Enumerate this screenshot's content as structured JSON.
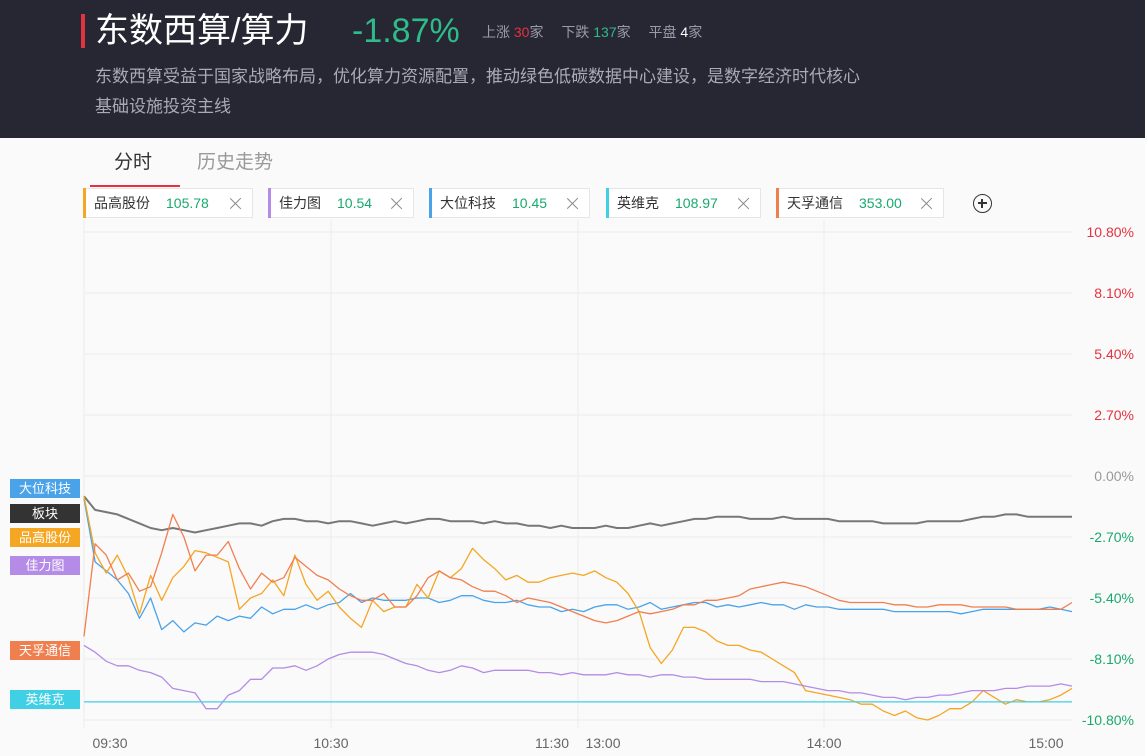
{
  "header": {
    "title": "东数西算/算力",
    "change_pct": "-1.87%",
    "up_label": "上涨",
    "up_count": "30",
    "down_label": "下跌",
    "down_count": "137",
    "flat_label": "平盘",
    "flat_count": "4",
    "unit": "家",
    "description": "东数西算受益于国家战略布局，优化算力资源配置，推动绿色低碳数据中心建设，是数字经济时代核心基础设施投资主线"
  },
  "tabs": [
    {
      "label": "分时",
      "active": true
    },
    {
      "label": "历史走势",
      "active": false
    }
  ],
  "chips": [
    {
      "name": "品高股份",
      "value": "105.78",
      "color": "#f5a623"
    },
    {
      "name": "佳力图",
      "value": "10.54",
      "color": "#b48be6"
    },
    {
      "name": "大位科技",
      "value": "10.45",
      "color": "#4aa3e8"
    },
    {
      "name": "英维克",
      "value": "108.97",
      "color": "#3fd0e6"
    },
    {
      "name": "天孚通信",
      "value": "353.00",
      "color": "#f07f4f"
    }
  ],
  "tags": [
    {
      "label": "大位科技",
      "color": "#4aa3e8"
    },
    {
      "label": "板块",
      "color": "#333333"
    },
    {
      "label": "品高股份",
      "color": "#f5a623"
    },
    {
      "label": "佳力图",
      "color": "#b48be6"
    },
    {
      "label": "天孚通信",
      "color": "#f07f4f"
    },
    {
      "label": "英维克",
      "color": "#3fd0e6"
    }
  ],
  "chart_data": {
    "type": "line",
    "x_ticks": [
      "09:30",
      "10:30",
      "11:30",
      "13:00",
      "14:00",
      "15:00"
    ],
    "y_ticks": [
      "10.80%",
      "8.10%",
      "5.40%",
      "2.70%",
      "0.00%",
      "-2.70%",
      "-5.40%",
      "-8.10%",
      "-10.80%"
    ],
    "ylim": [
      -10.8,
      10.8
    ],
    "grid": true,
    "series": [
      {
        "name": "板块",
        "color": "#777777",
        "values": [
          -0.9,
          -1.5,
          -1.6,
          -1.7,
          -1.9,
          -2.1,
          -2.3,
          -2.4,
          -2.3,
          -2.4,
          -2.5,
          -2.4,
          -2.3,
          -2.2,
          -2.1,
          -2.1,
          -2.2,
          -2.0,
          -1.9,
          -1.9,
          -2.0,
          -2.0,
          -2.1,
          -2.0,
          -2.0,
          -2.1,
          -2.2,
          -2.1,
          -2.0,
          -2.1,
          -2.0,
          -1.9,
          -1.9,
          -2.0,
          -2.0,
          -2.0,
          -2.1,
          -2.0,
          -2.1,
          -2.1,
          -2.2,
          -2.2,
          -2.3,
          -2.2,
          -2.3,
          -2.3,
          -2.3,
          -2.2,
          -2.3,
          -2.3,
          -2.2,
          -2.1,
          -2.2,
          -2.1,
          -2.0,
          -1.9,
          -1.9,
          -1.8,
          -1.8,
          -1.8,
          -1.9,
          -1.9,
          -1.9,
          -1.8,
          -1.9,
          -1.9,
          -1.9,
          -1.9,
          -2.0,
          -2.0,
          -2.0,
          -2.0,
          -2.1,
          -2.1,
          -2.1,
          -2.1,
          -2.0,
          -2.0,
          -2.0,
          -2.0,
          -1.9,
          -1.8,
          -1.8,
          -1.7,
          -1.7,
          -1.8,
          -1.8,
          -1.8,
          -1.8,
          -1.8
        ]
      },
      {
        "name": "大位科技",
        "color": "#4aa3e8",
        "values": [
          -1.0,
          -3.8,
          -4.2,
          -4.6,
          -5.2,
          -6.3,
          -5.4,
          -6.8,
          -6.4,
          -6.9,
          -6.5,
          -6.6,
          -6.2,
          -6.4,
          -6.2,
          -6.3,
          -5.8,
          -6.1,
          -5.9,
          -5.9,
          -5.7,
          -5.9,
          -5.7,
          -5.6,
          -5.2,
          -5.6,
          -5.4,
          -5.5,
          -5.5,
          -5.5,
          -5.4,
          -5.4,
          -5.6,
          -5.5,
          -5.3,
          -5.3,
          -5.5,
          -5.6,
          -5.6,
          -5.5,
          -5.7,
          -5.8,
          -5.8,
          -6.0,
          -5.9,
          -6.0,
          -5.8,
          -5.7,
          -5.7,
          -5.9,
          -5.8,
          -5.6,
          -5.9,
          -5.8,
          -5.7,
          -5.6,
          -5.6,
          -5.8,
          -5.7,
          -5.8,
          -5.7,
          -5.6,
          -5.7,
          -5.7,
          -5.9,
          -5.7,
          -5.8,
          -5.8,
          -5.9,
          -5.9,
          -5.9,
          -5.9,
          -5.9,
          -6.0,
          -6.0,
          -6.0,
          -6.0,
          -6.0,
          -6.0,
          -6.1,
          -6.0,
          -5.9,
          -5.9,
          -5.9,
          -5.9,
          -5.9,
          -5.9,
          -5.8,
          -5.9,
          -6.0
        ]
      },
      {
        "name": "品高股份",
        "color": "#f5a623",
        "values": [
          -0.9,
          -3.4,
          -4.3,
          -3.5,
          -4.5,
          -6.1,
          -4.4,
          -5.5,
          -4.5,
          -4.0,
          -3.3,
          -3.4,
          -3.6,
          -3.8,
          -5.9,
          -5.4,
          -5.2,
          -4.6,
          -5.3,
          -3.5,
          -4.8,
          -5.5,
          -5.1,
          -5.8,
          -6.3,
          -6.7,
          -5.5,
          -6.0,
          -5.8,
          -5.8,
          -4.8,
          -5.4,
          -4.2,
          -4.5,
          -4.1,
          -3.2,
          -3.7,
          -4.1,
          -4.6,
          -4.4,
          -4.7,
          -4.7,
          -4.5,
          -4.4,
          -4.3,
          -4.4,
          -4.2,
          -4.5,
          -4.7,
          -5.2,
          -6.0,
          -7.6,
          -8.3,
          -7.7,
          -6.7,
          -6.7,
          -6.9,
          -7.3,
          -7.5,
          -7.5,
          -7.7,
          -7.8,
          -8.1,
          -8.4,
          -8.7,
          -9.5,
          -9.6,
          -9.7,
          -9.8,
          -9.9,
          -10.1,
          -10.1,
          -10.4,
          -10.6,
          -10.4,
          -10.7,
          -10.8,
          -10.6,
          -10.3,
          -10.3,
          -10.0,
          -9.5,
          -9.8,
          -10.1,
          -9.9,
          -10.0,
          -10.0,
          -9.9,
          -9.7,
          -9.4
        ]
      },
      {
        "name": "天孚通信",
        "color": "#f07f4f",
        "values": [
          -7.1,
          -3.0,
          -3.5,
          -4.6,
          -4.3,
          -5.1,
          -4.9,
          -3.4,
          -1.7,
          -2.7,
          -4.2,
          -3.5,
          -3.5,
          -2.9,
          -4.1,
          -5.0,
          -4.3,
          -4.7,
          -4.5,
          -3.6,
          -4.0,
          -4.4,
          -4.6,
          -5.0,
          -5.3,
          -5.5,
          -5.5,
          -5.2,
          -5.8,
          -5.8,
          -5.3,
          -4.5,
          -4.2,
          -4.5,
          -4.6,
          -4.9,
          -5.1,
          -5.1,
          -5.3,
          -5.6,
          -5.4,
          -5.5,
          -5.6,
          -5.8,
          -6.0,
          -6.2,
          -6.4,
          -6.5,
          -6.4,
          -6.2,
          -6.0,
          -6.1,
          -6.0,
          -5.9,
          -5.7,
          -5.7,
          -5.5,
          -5.5,
          -5.4,
          -5.3,
          -5.0,
          -4.9,
          -4.8,
          -4.7,
          -4.8,
          -4.9,
          -5.1,
          -5.3,
          -5.5,
          -5.6,
          -5.6,
          -5.6,
          -5.6,
          -5.7,
          -5.7,
          -5.8,
          -5.8,
          -5.7,
          -5.7,
          -5.7,
          -5.8,
          -5.8,
          -5.8,
          -5.8,
          -5.9,
          -5.9,
          -5.9,
          -5.9,
          -5.9,
          -5.6
        ]
      },
      {
        "name": "佳力图",
        "color": "#b48be6",
        "values": [
          -7.5,
          -7.8,
          -8.2,
          -8.4,
          -8.4,
          -8.6,
          -8.7,
          -8.9,
          -9.4,
          -9.5,
          -9.6,
          -10.3,
          -10.3,
          -9.7,
          -9.5,
          -9.0,
          -9.0,
          -8.5,
          -8.5,
          -8.4,
          -8.6,
          -8.4,
          -8.1,
          -7.9,
          -7.8,
          -7.8,
          -7.8,
          -7.9,
          -8.1,
          -8.3,
          -8.4,
          -8.6,
          -8.7,
          -8.6,
          -8.4,
          -8.5,
          -8.7,
          -8.6,
          -8.6,
          -8.6,
          -8.6,
          -8.7,
          -8.7,
          -8.8,
          -8.7,
          -8.8,
          -8.8,
          -8.8,
          -8.7,
          -8.8,
          -8.8,
          -8.9,
          -8.8,
          -8.8,
          -8.9,
          -8.9,
          -9.0,
          -9.0,
          -9.0,
          -9.0,
          -9.0,
          -9.1,
          -9.1,
          -9.1,
          -9.2,
          -9.3,
          -9.4,
          -9.5,
          -9.5,
          -9.6,
          -9.6,
          -9.7,
          -9.8,
          -9.8,
          -9.9,
          -9.8,
          -9.8,
          -9.7,
          -9.7,
          -9.6,
          -9.5,
          -9.5,
          -9.5,
          -9.4,
          -9.4,
          -9.3,
          -9.3,
          -9.3,
          -9.2,
          -9.3
        ]
      },
      {
        "name": "英维克",
        "color": "#3fd0e6",
        "values": [
          -10.0,
          -10.0,
          -10.0,
          -10.0,
          -10.0,
          -10.0,
          -10.0,
          -10.0,
          -10.0,
          -10.0,
          -10.0,
          -10.0,
          -10.0,
          -10.0,
          -10.0,
          -10.0,
          -10.0,
          -10.0,
          -10.0,
          -10.0,
          -10.0,
          -10.0,
          -10.0,
          -10.0,
          -10.0,
          -10.0,
          -10.0,
          -10.0,
          -10.0,
          -10.0,
          -10.0,
          -10.0,
          -10.0,
          -10.0,
          -10.0,
          -10.0,
          -10.0,
          -10.0,
          -10.0,
          -10.0,
          -10.0,
          -10.0,
          -10.0,
          -10.0,
          -10.0,
          -10.0,
          -10.0,
          -10.0,
          -10.0,
          -10.0,
          -10.0,
          -10.0,
          -10.0,
          -10.0,
          -10.0,
          -10.0,
          -10.0,
          -10.0,
          -10.0,
          -10.0,
          -10.0,
          -10.0,
          -10.0,
          -10.0,
          -10.0,
          -10.0,
          -10.0,
          -10.0,
          -10.0,
          -10.0,
          -10.0,
          -10.0,
          -10.0,
          -10.0,
          -10.0,
          -10.0,
          -10.0,
          -10.0,
          -10.0,
          -10.0,
          -10.0,
          -10.0,
          -10.0,
          -10.0,
          -10.0,
          -10.0,
          -10.0,
          -10.0,
          -10.0,
          -10.0
        ]
      }
    ]
  }
}
